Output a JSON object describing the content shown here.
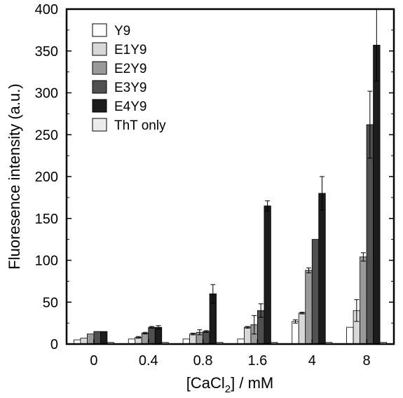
{
  "chart_data": {
    "type": "bar",
    "title": "",
    "xlabel": "[CaCl2] / mM",
    "xlabel_main": "[CaCl",
    "xlabel_sub": "2",
    "xlabel_tail": "] / mM",
    "ylabel": "Fluoresence intensity (a.u.)",
    "ylim": [
      0,
      400
    ],
    "yticks": [
      "0",
      "50",
      "100",
      "150",
      "200",
      "250",
      "300",
      "350",
      "400"
    ],
    "categories": [
      "0",
      "0.4",
      "0.8",
      "1.6",
      "4",
      "8"
    ],
    "legend_position": "top-left",
    "series": [
      {
        "name": "Y9",
        "color": "#ffffff",
        "values": [
          5,
          6,
          6,
          6,
          27,
          20
        ],
        "errors": [
          0,
          0,
          0,
          0,
          2,
          0
        ]
      },
      {
        "name": "E1Y9",
        "color": "#d8d8d8",
        "values": [
          7,
          8,
          12,
          20,
          37,
          40
        ],
        "errors": [
          0,
          1,
          1,
          1,
          1,
          13
        ]
      },
      {
        "name": "E2Y9",
        "color": "#9a9a9a",
        "values": [
          12,
          13,
          14,
          23,
          88,
          104
        ],
        "errors": [
          0,
          1,
          3,
          11,
          3,
          5
        ]
      },
      {
        "name": "E3Y9",
        "color": "#505050",
        "values": [
          15,
          20,
          15,
          40,
          125,
          262
        ],
        "errors": [
          0,
          1,
          1,
          8,
          0,
          40
        ]
      },
      {
        "name": "E4Y9",
        "color": "#1c1c1c",
        "values": [
          15,
          20,
          60,
          165,
          180,
          357
        ],
        "errors": [
          0,
          2,
          11,
          6,
          20,
          43
        ]
      },
      {
        "name": "ThT only",
        "color": "#ececec",
        "values": [
          2,
          2,
          2,
          2,
          2,
          2
        ],
        "errors": [
          0,
          0,
          0,
          0,
          0,
          0
        ]
      }
    ]
  }
}
